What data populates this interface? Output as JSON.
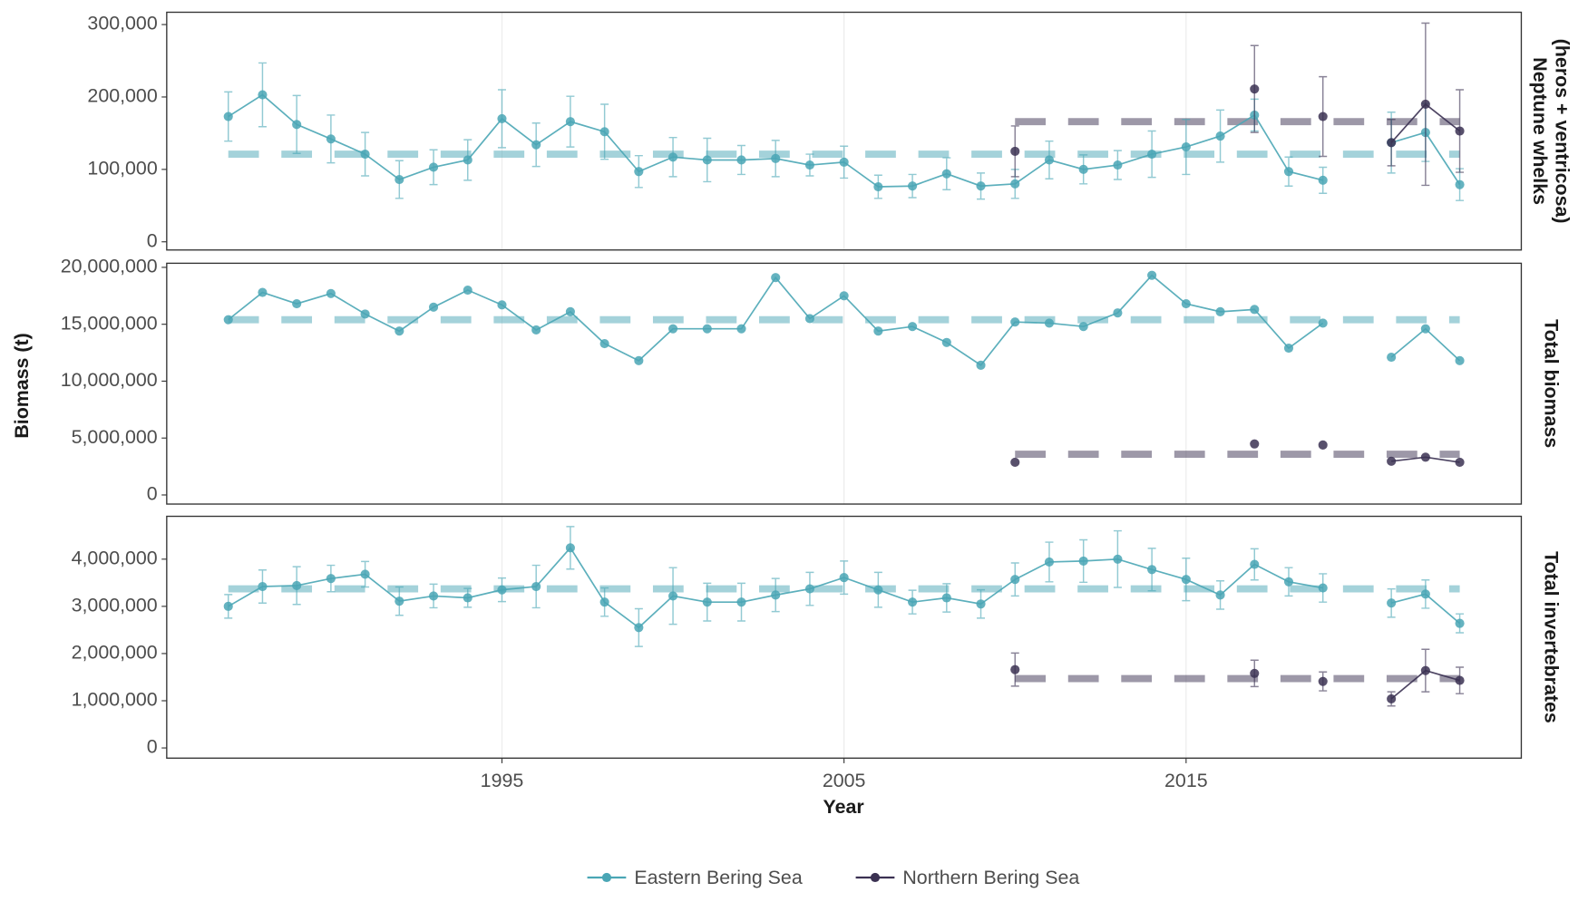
{
  "chart_data": {
    "type": "line",
    "xlabel": "Year",
    "ylabel": "Biomass  (t)",
    "x": [
      1987,
      1988,
      1989,
      1990,
      1991,
      1992,
      1993,
      1994,
      1995,
      1996,
      1997,
      1998,
      1999,
      2000,
      2001,
      2002,
      2003,
      2004,
      2005,
      2006,
      2007,
      2008,
      2009,
      2010,
      2011,
      2012,
      2013,
      2014,
      2015,
      2016,
      2017,
      2018,
      2019,
      2020,
      2021,
      2022,
      2023
    ],
    "xlim": [
      1985.2,
      2024.8
    ],
    "xticks": [
      1995,
      2005,
      2015
    ],
    "grid": true,
    "series": [
      {
        "name": "Eastern Bering Sea",
        "color": "#4aa6b5"
      },
      {
        "name": "Northern Bering Sea",
        "color": "#3b3152"
      }
    ],
    "facets": [
      {
        "title": [
          "Neptune whelks",
          "(heros + ventricosa)"
        ],
        "ylim": [
          -11300,
          317000
        ],
        "yticks": [
          0,
          {
            "value": 100000,
            "label": "100,000"
          },
          {
            "value": 200000,
            "label": "200,000"
          },
          {
            "value": 300000,
            "label": "300,000"
          }
        ],
        "series": [
          {
            "mean": 121000,
            "values": [
              173000,
              203000,
              162000,
              142000,
              121000,
              86000,
              103000,
              113000,
              170000,
              134000,
              166000,
              152000,
              97000,
              117000,
              113000,
              113000,
              115000,
              106000,
              110000,
              76000,
              77000,
              94000,
              77000,
              80000,
              113000,
              100000,
              106000,
              121000,
              131000,
              146000,
              175000,
              97000,
              85000,
              null,
              137000,
              151000,
              79000
            ],
            "errors": [
              34000,
              44000,
              40000,
              33000,
              30000,
              26000,
              24000,
              28000,
              40000,
              30000,
              35000,
              38000,
              22000,
              27000,
              30000,
              20000,
              25000,
              15000,
              22000,
              16000,
              16000,
              22000,
              18000,
              20000,
              26000,
              20000,
              20000,
              32000,
              38000,
              36000,
              22000,
              20000,
              18000,
              null,
              42000,
              40000,
              22000
            ]
          },
          {
            "mean": 166000,
            "values": [
              null,
              null,
              null,
              null,
              null,
              null,
              null,
              null,
              null,
              null,
              null,
              null,
              null,
              null,
              null,
              null,
              null,
              null,
              null,
              null,
              null,
              null,
              null,
              125000,
              null,
              null,
              null,
              null,
              null,
              null,
              211000,
              null,
              173000,
              null,
              137000,
              190000,
              153000
            ],
            "errors": [
              null,
              null,
              null,
              null,
              null,
              null,
              null,
              null,
              null,
              null,
              null,
              null,
              null,
              null,
              null,
              null,
              null,
              null,
              null,
              null,
              null,
              null,
              null,
              35000,
              null,
              null,
              null,
              null,
              null,
              null,
              60000,
              null,
              55000,
              null,
              32000,
              112000,
              57000
            ]
          }
        ]
      },
      {
        "title": [
          "Total biomass"
        ],
        "ylim": [
          -800000,
          20360000
        ],
        "yticks": [
          0,
          {
            "value": 5000000,
            "label": "5,000,000"
          },
          {
            "value": 10000000,
            "label": "10,000,000"
          },
          {
            "value": 15000000,
            "label": "15,000,000"
          },
          {
            "value": 20000000,
            "label": "20,000,000"
          }
        ],
        "series": [
          {
            "mean": 15400000,
            "values": [
              15400000,
              17800000,
              16800000,
              17700000,
              15900000,
              14400000,
              16500000,
              18000000,
              16700000,
              14500000,
              16100000,
              13300000,
              11800000,
              14600000,
              14600000,
              14600000,
              19100000,
              15500000,
              17500000,
              14400000,
              14800000,
              13400000,
              11400000,
              15200000,
              15100000,
              14800000,
              16000000,
              19300000,
              16800000,
              16100000,
              16300000,
              12900000,
              15100000,
              null,
              12100000,
              14600000,
              11800000
            ]
          },
          {
            "mean": 3580000,
            "values": [
              null,
              null,
              null,
              null,
              null,
              null,
              null,
              null,
              null,
              null,
              null,
              null,
              null,
              null,
              null,
              null,
              null,
              null,
              null,
              null,
              null,
              null,
              null,
              2870000,
              null,
              null,
              null,
              null,
              null,
              null,
              4480000,
              null,
              4390000,
              null,
              2960000,
              3320000,
              2870000
            ]
          }
        ]
      },
      {
        "title": [
          "Total invertebrates"
        ],
        "ylim": [
          -216000,
          4908000
        ],
        "yticks": [
          0,
          {
            "value": 1000000,
            "label": "1,000,000"
          },
          {
            "value": 2000000,
            "label": "2,000,000"
          },
          {
            "value": 3000000,
            "label": "3,000,000"
          },
          {
            "value": 4000000,
            "label": "4,000,000"
          }
        ],
        "series": [
          {
            "mean": 3370000,
            "values": [
              3000000,
              3420000,
              3440000,
              3590000,
              3680000,
              3110000,
              3220000,
              3180000,
              3350000,
              3420000,
              4240000,
              3090000,
              2550000,
              3220000,
              3090000,
              3090000,
              3240000,
              3370000,
              3610000,
              3350000,
              3090000,
              3180000,
              3050000,
              3570000,
              3940000,
              3960000,
              4000000,
              3780000,
              3570000,
              3240000,
              3890000,
              3520000,
              3390000,
              null,
              3070000,
              3260000,
              2640000
            ],
            "errors": [
              250000,
              350000,
              400000,
              280000,
              270000,
              300000,
              250000,
              200000,
              250000,
              450000,
              450000,
              300000,
              400000,
              600000,
              400000,
              400000,
              350000,
              350000,
              350000,
              370000,
              250000,
              300000,
              300000,
              350000,
              420000,
              450000,
              600000,
              450000,
              450000,
              300000,
              330000,
              300000,
              300000,
              null,
              300000,
              300000,
              200000
            ]
          },
          {
            "mean": 1470000,
            "values": [
              null,
              null,
              null,
              null,
              null,
              null,
              null,
              null,
              null,
              null,
              null,
              null,
              null,
              null,
              null,
              null,
              null,
              null,
              null,
              null,
              null,
              null,
              null,
              1660000,
              null,
              null,
              null,
              null,
              null,
              null,
              1580000,
              null,
              1410000,
              null,
              1040000,
              1640000,
              1430000
            ],
            "errors": [
              null,
              null,
              null,
              null,
              null,
              null,
              null,
              null,
              null,
              null,
              null,
              null,
              null,
              null,
              null,
              null,
              null,
              null,
              null,
              null,
              null,
              null,
              null,
              350000,
              null,
              null,
              null,
              null,
              null,
              null,
              280000,
              null,
              200000,
              null,
              150000,
              450000,
              280000
            ]
          }
        ]
      }
    ]
  }
}
